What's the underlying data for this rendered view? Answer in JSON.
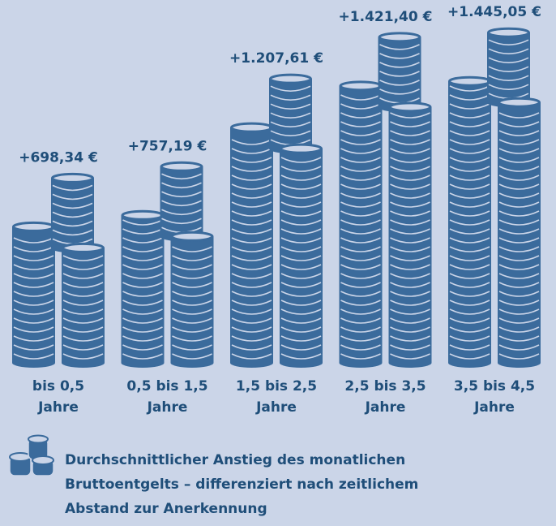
{
  "chart_data": {
    "type": "pictogram",
    "title": "Durchschnittlicher Anstieg des monatlichen Bruttoentgelts – differenziert nach zeitlichem Abstand zur Anerkennung",
    "categories": [
      "bis 0,5 Jahre",
      "0,5 bis 1,5 Jahre",
      "1,5 bis 2,5 Jahre",
      "2,5 bis 3,5 Jahre",
      "3,5 bis 4,5 Jahre"
    ],
    "values": [
      698.34,
      757.19,
      1207.61,
      1421.4,
      1445.05
    ],
    "value_labels": [
      "+698,34 €",
      "+757,19 €",
      "+1.207,61 €",
      "+1.421,40 €",
      "+1.445,05 €"
    ],
    "color": "#3b6b9c"
  }
}
